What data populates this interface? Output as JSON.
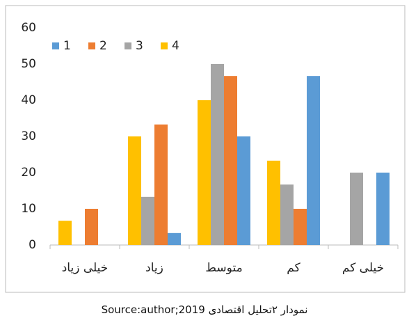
{
  "chart_data": {
    "type": "bar",
    "categories": [
      "خیلی کم",
      "کم",
      "متوسط",
      "زیاد",
      "خیلی زیاد"
    ],
    "x_reversed": true,
    "series": [
      {
        "name": "1",
        "color": "#5b9bd5",
        "values": [
          20,
          46.7,
          30,
          3.3,
          0
        ]
      },
      {
        "name": "2",
        "color": "#ed7d31",
        "values": [
          0,
          10,
          46.7,
          33.3,
          10
        ]
      },
      {
        "name": "3",
        "color": "#a5a5a5",
        "values": [
          20,
          16.7,
          50,
          13.3,
          0
        ]
      },
      {
        "name": "4",
        "color": "#ffc000",
        "values": [
          0,
          23.3,
          40,
          30,
          6.7
        ]
      }
    ],
    "ylim": [
      0,
      60
    ],
    "yticks": [
      0,
      10,
      20,
      30,
      40,
      50,
      60
    ],
    "legend": "top-left",
    "caption": "نمودار ۲تحلیل اقتصادی Source:author;2019"
  }
}
